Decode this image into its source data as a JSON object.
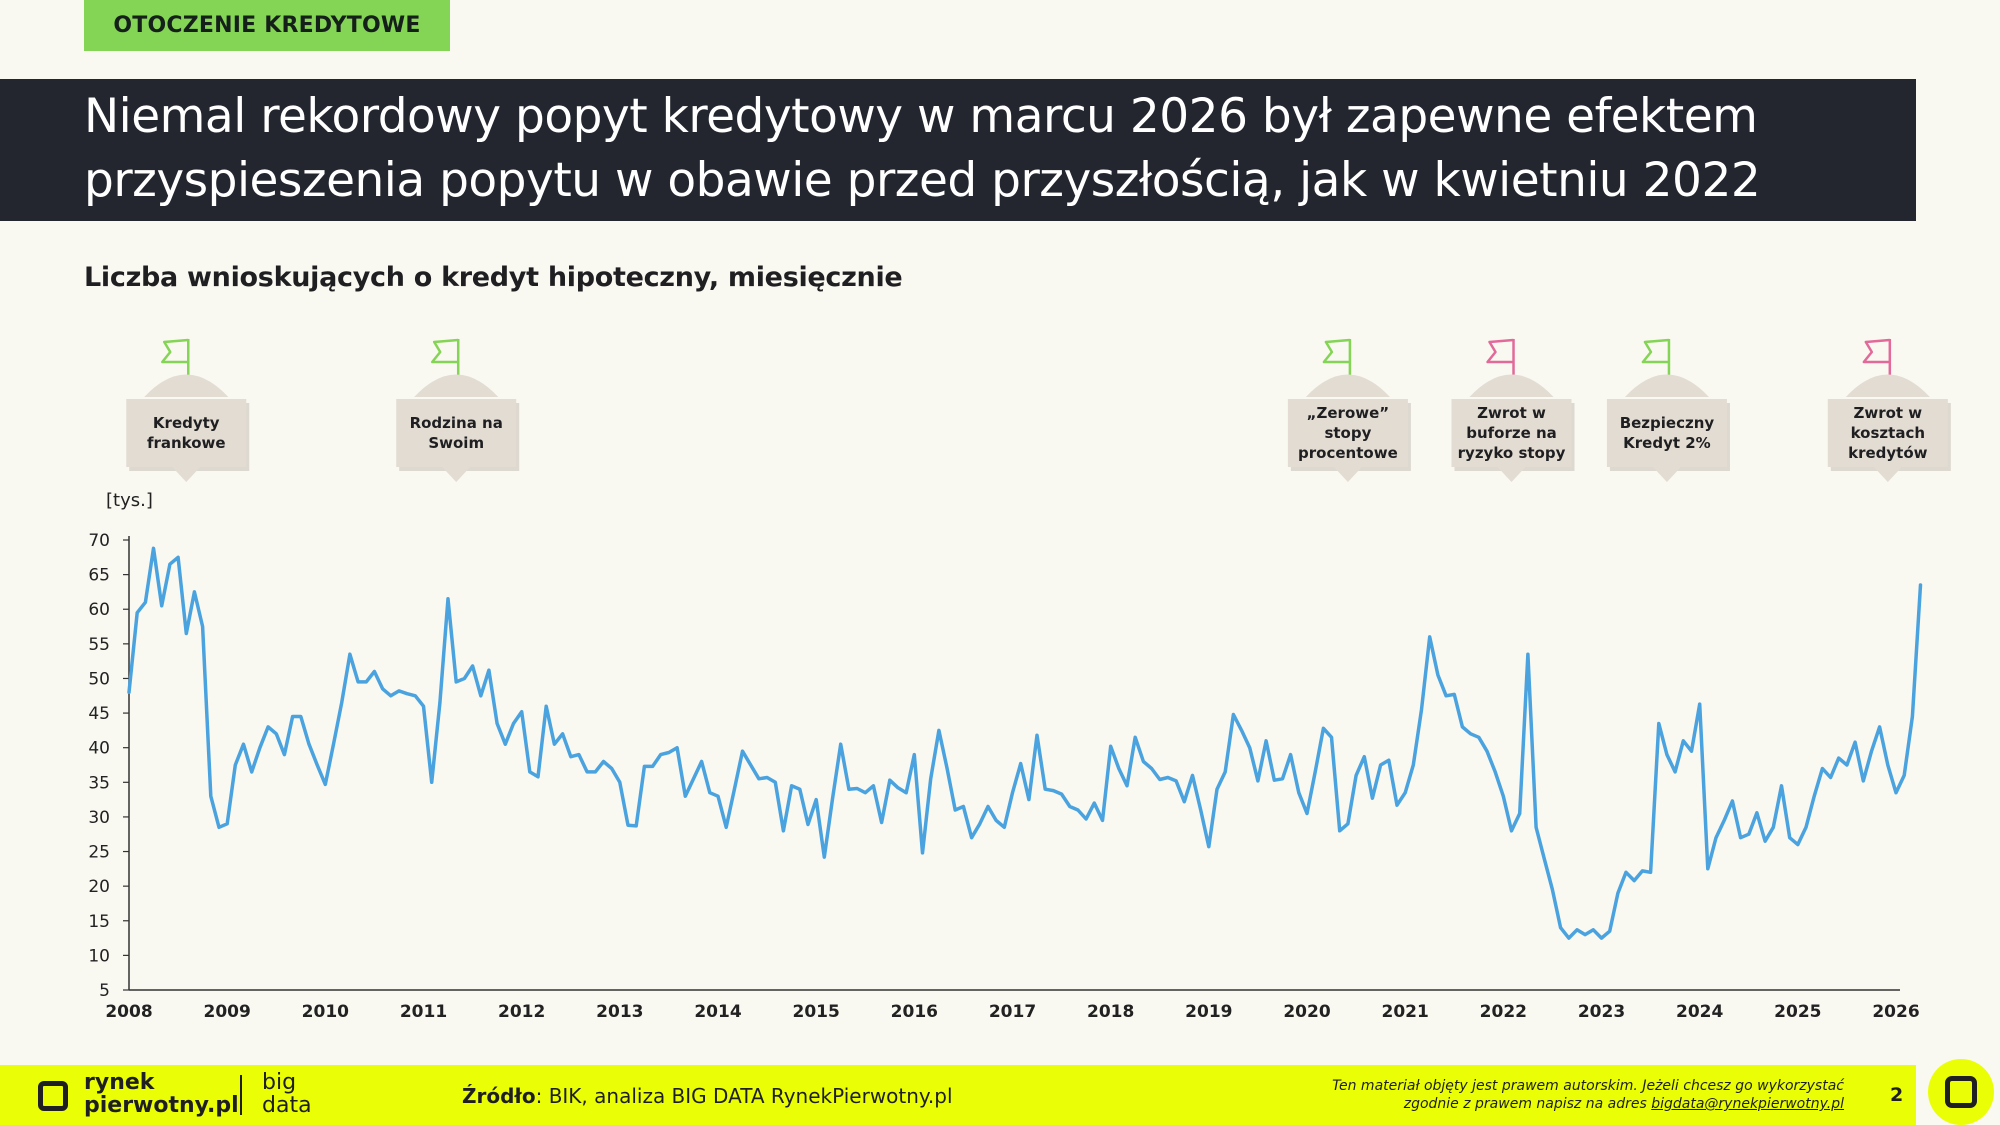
{
  "section_tag": "OTOCZENIE KREDYTOWE",
  "title_line1": "Niemal rekordowy popyt kredytowy w marcu 2026 był zapewne efektem",
  "title_line2": "przyspieszenia popytu w obawie przed przyszłością, jak w kwietniu 2022",
  "subtitle": "Liczba wnioskujących o kredyt hipoteczny, miesięcznie",
  "colors": {
    "accent_green": "#84d455",
    "footer_yellow": "#eaff05",
    "title_bar": "#23262f",
    "line": "#4aa3df",
    "flag_green": "#84d455",
    "flag_pink": "#e26a9a",
    "callout_fill": "#e2dcd3"
  },
  "callouts": [
    {
      "label": "Kredyty frankowe",
      "lines": [
        "Kredyty",
        "frankowe"
      ],
      "flag": "green",
      "flag_icon": "flag-icon",
      "date": "2008-08"
    },
    {
      "label": "Rodzina na Swoim",
      "lines": [
        "Rodzina na",
        "Swoim"
      ],
      "flag": "green",
      "flag_icon": "flag-icon",
      "date": "2011-05"
    },
    {
      "label": "„Zerowe” stopy procentowe",
      "lines": [
        "„Zerowe”",
        "stopy",
        "procentowe"
      ],
      "flag": "green",
      "flag_icon": "flag-icon",
      "date": "2020-06"
    },
    {
      "label": "Zwrot w buforze na ryzyko stopy",
      "lines": [
        "Zwrot w",
        "buforze na",
        "ryzyko stopy"
      ],
      "flag": "pink",
      "flag_icon": "flag-icon",
      "date": "2022-02"
    },
    {
      "label": "Bezpieczny Kredyt 2%",
      "lines": [
        "Bezpieczny",
        "Kredyt 2%"
      ],
      "flag": "green",
      "flag_icon": "flag-icon",
      "date": "2023-09"
    },
    {
      "label": "Zwrot w kosztach kredytów",
      "lines": [
        "Zwrot w",
        "kosztach",
        "kredytów"
      ],
      "flag": "pink",
      "flag_icon": "flag-icon",
      "date": "2025-12"
    }
  ],
  "chart_data": {
    "type": "line",
    "title": "Liczba wnioskujących o kredyt hipoteczny, miesięcznie",
    "ylabel": "[tys.]",
    "xlabel": "",
    "ylim": [
      5,
      70
    ],
    "y_ticks": [
      5,
      10,
      15,
      20,
      25,
      30,
      35,
      40,
      45,
      50,
      55,
      60,
      65,
      70
    ],
    "x_ticks": [
      "2008",
      "2009",
      "2010",
      "2011",
      "2012",
      "2013",
      "2014",
      "2015",
      "2016",
      "2017",
      "2018",
      "2019",
      "2020",
      "2021",
      "2022",
      "2023",
      "2024",
      "2025",
      "2026"
    ],
    "x_start": "2008-01",
    "x_end": "2026-03",
    "grid": false,
    "legend": "none",
    "series": [
      {
        "name": "",
        "values": [
          48.0,
          59.5,
          61.0,
          68.8,
          60.5,
          66.5,
          67.5,
          56.5,
          62.5,
          57.5,
          33.0,
          28.5,
          29.0,
          37.5,
          40.5,
          36.5,
          40.0,
          43.0,
          42.0,
          39.0,
          44.5,
          44.5,
          40.5,
          37.5,
          34.7,
          40.5,
          46.5,
          53.5,
          49.5,
          49.5,
          51.0,
          48.5,
          47.5,
          48.2,
          47.8,
          47.5,
          46.0,
          35.0,
          46.5,
          61.5,
          49.5,
          50.0,
          51.8,
          47.5,
          51.2,
          43.5,
          40.5,
          43.5,
          45.2,
          36.5,
          35.8,
          46.0,
          40.5,
          42.0,
          38.7,
          39.0,
          36.5,
          36.5,
          38.0,
          37.0,
          35.0,
          28.8,
          28.7,
          37.3,
          37.3,
          39.0,
          39.3,
          40.0,
          33.0,
          35.5,
          38.0,
          33.5,
          33.0,
          28.5,
          34.0,
          39.5,
          37.5,
          35.5,
          35.7,
          35.0,
          28.0,
          34.5,
          34.0,
          28.9,
          32.5,
          24.2,
          32.6,
          40.5,
          34.0,
          34.1,
          33.5,
          34.5,
          29.2,
          35.3,
          34.2,
          33.5,
          39.0,
          24.8,
          35.5,
          42.5,
          37.0,
          31.0,
          31.5,
          27.0,
          29.0,
          31.5,
          29.5,
          28.5,
          33.5,
          37.7,
          32.5,
          41.8,
          34.0,
          33.8,
          33.3,
          31.5,
          31.0,
          29.7,
          32.0,
          29.5,
          40.2,
          37.0,
          34.5,
          41.5,
          38.0,
          37.0,
          35.4,
          35.7,
          35.2,
          32.2,
          36.0,
          31.0,
          25.7,
          34.0,
          36.5,
          44.8,
          42.5,
          40.0,
          35.2,
          41.0,
          35.3,
          35.5,
          39.0,
          33.5,
          30.5,
          36.5,
          42.8,
          41.5,
          28.0,
          29.0,
          36.0,
          38.7,
          32.7,
          37.5,
          38.2,
          31.7,
          33.5,
          37.5,
          45.5,
          56.0,
          50.5,
          47.5,
          47.7,
          43.0,
          42.0,
          41.5,
          39.5,
          36.5,
          33.0,
          28.0,
          30.5,
          53.5,
          28.5,
          24.0,
          19.5,
          14.0,
          12.5,
          13.7,
          13.0,
          13.7,
          12.5,
          13.5,
          19.0,
          22.0,
          20.8,
          22.2,
          22.0,
          43.5,
          39.0,
          36.5,
          41.0,
          39.5,
          46.3,
          22.5,
          27.0,
          29.5,
          32.3,
          27.0,
          27.5,
          30.6,
          26.5,
          28.5,
          34.5,
          27.0,
          26.0,
          28.5,
          33.0,
          37.0,
          35.7,
          38.5,
          37.5,
          40.8,
          35.2,
          39.5,
          43.0,
          37.5,
          33.5,
          36.0,
          44.5,
          63.5
        ]
      }
    ]
  },
  "footer": {
    "logo_line1": "rynek",
    "logo_line2": "pierwotny.pl",
    "bigdata_line1": "big",
    "bigdata_line2": "data",
    "source_label": "Źródło",
    "source_text": ": BIK, analiza BIG DATA RynekPierwotny.pl",
    "copyright_line1": "Ten materiał objęty jest prawem autorskim. Jeżeli chcesz go wykorzystać",
    "copyright_line2_prefix": "zgodnie z prawem napisz na adres ",
    "copyright_email": "bigdata@rynekpierwotny.pl",
    "page_number": "2"
  }
}
